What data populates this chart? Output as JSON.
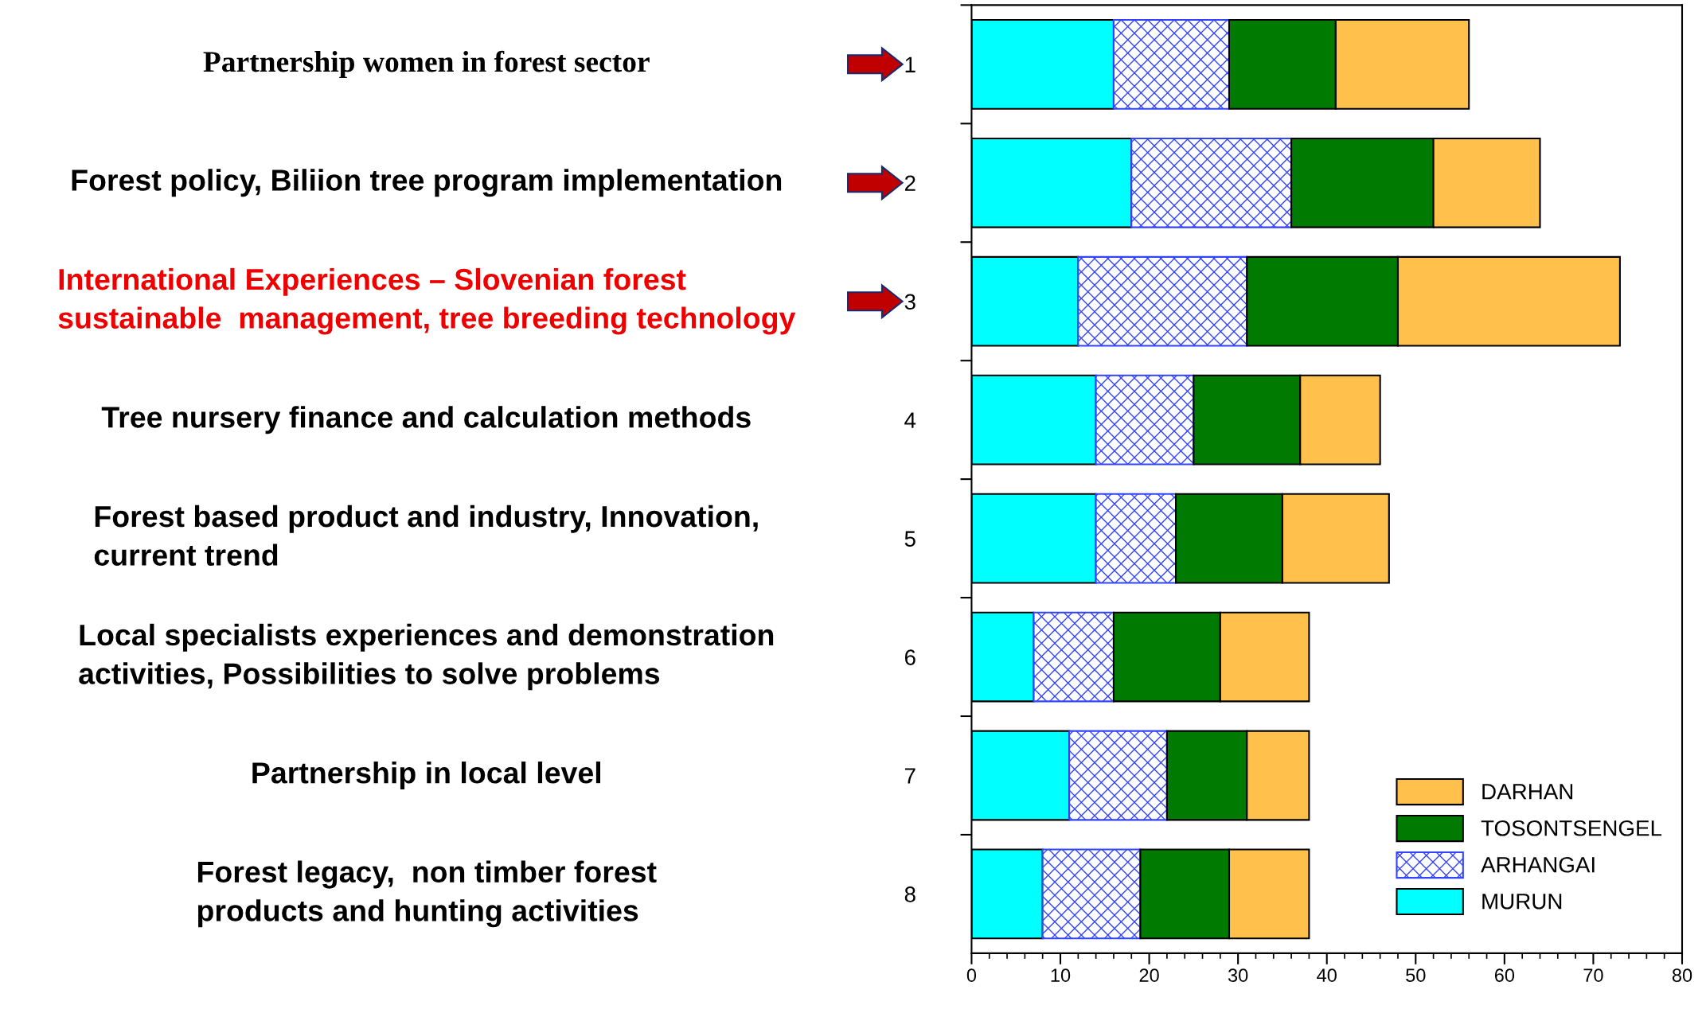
{
  "chart_data": {
    "type": "bar",
    "orientation": "horizontal",
    "stacked": true,
    "categories": [
      "1",
      "2",
      "3",
      "4",
      "5",
      "6",
      "7",
      "8"
    ],
    "series": [
      {
        "name": "MURUN",
        "color": "#00ffff",
        "values": [
          16,
          18,
          12,
          14,
          14,
          7,
          11,
          8
        ]
      },
      {
        "name": "ARHANGAI",
        "color": "#3344ff",
        "values": [
          13,
          18,
          19,
          11,
          9,
          9,
          11,
          11
        ]
      },
      {
        "name": "TOSONTSENGEL",
        "color": "#007a00",
        "values": [
          12,
          16,
          17,
          12,
          12,
          12,
          9,
          10
        ]
      },
      {
        "name": "DARHAN",
        "color": "#ffc04c",
        "values": [
          15,
          12,
          25,
          9,
          12,
          10,
          7,
          9
        ]
      }
    ],
    "xlim": [
      0,
      80
    ],
    "xticks": [
      0,
      10,
      20,
      30,
      40,
      50,
      60,
      70,
      80
    ],
    "legend": "bottom right",
    "grid": false,
    "annotations": [
      "Partnership women in forest sector",
      "Forest policy, Biliion tree program implementation",
      "International Experiences – Slovenian forest\nsustainable  management, tree breeding technology",
      "Tree nursery finance and calculation methods",
      "Forest based product and industry, Innovation,\ncurrent trend",
      "Local specialists experiences and demonstration\nactivities, Possibilities to solve problems",
      "Partnership in local level",
      "Forest legacy,  non timber forest\nproducts and hunting activities"
    ]
  }
}
